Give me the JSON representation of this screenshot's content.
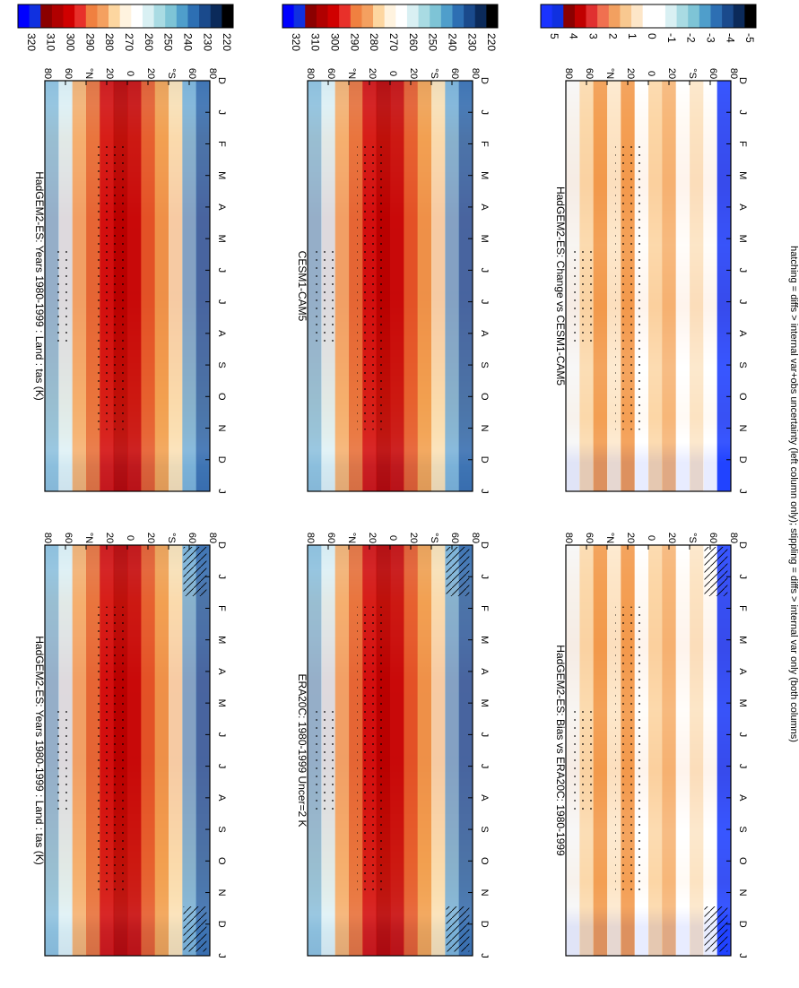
{
  "footer_note": "hatching = diffs > internal var+obs uncertainty (left column only); stippling = diffs > internal var only (both columns)",
  "abs_colorbar": {
    "labels": [
      "320",
      "310",
      "300",
      "290",
      "280",
      "270",
      "260",
      "250",
      "240",
      "230",
      "220"
    ]
  },
  "diff_colorbar": {
    "labels": [
      "5",
      "4",
      "3",
      "2",
      "1",
      "0",
      "-1",
      "-2",
      "-3",
      "-4",
      "-5"
    ]
  },
  "chart_data": [
    {
      "type": "heatmap",
      "title": "HadGEM2-ES: Years 1980-1999 : Land : tas (K)",
      "x": [
        "D",
        "J",
        "F",
        "M",
        "A",
        "M",
        "J",
        "J",
        "A",
        "S",
        "O",
        "N",
        "D",
        "J"
      ],
      "y_ticks": [
        "80",
        "60",
        "°N",
        "20",
        "0",
        "20",
        "°S",
        "60",
        "80"
      ],
      "color_scale": "abs",
      "lat_range": [
        -90,
        90
      ],
      "overlays": [
        "stippling",
        "hatching"
      ]
    },
    {
      "type": "heatmap",
      "title": "HadGEM2-ES: Years 1980-1999 : Land : tas (K)",
      "x": [
        "D",
        "J",
        "F",
        "M",
        "A",
        "M",
        "J",
        "J",
        "A",
        "S",
        "O",
        "N",
        "D",
        "J"
      ],
      "y_ticks": [
        "80",
        "60",
        "°N",
        "20",
        "0",
        "20",
        "°S",
        "60",
        "80"
      ],
      "color_scale": "abs",
      "lat_range": [
        -90,
        90
      ],
      "overlays": [
        "stippling"
      ]
    },
    {
      "type": "heatmap",
      "title": "ERA20C: 1980-1999 Uncer=2 K",
      "x": [
        "D",
        "J",
        "F",
        "M",
        "A",
        "M",
        "J",
        "J",
        "A",
        "S",
        "O",
        "N",
        "D",
        "J"
      ],
      "y_ticks": [
        "80",
        "60",
        "°N",
        "20",
        "0",
        "20",
        "°S",
        "60",
        "80"
      ],
      "color_scale": "abs",
      "lat_range": [
        -90,
        90
      ],
      "overlays": [
        "stippling",
        "hatching"
      ]
    },
    {
      "type": "heatmap",
      "title": "CESM1-CAM5",
      "x": [
        "D",
        "J",
        "F",
        "M",
        "A",
        "M",
        "J",
        "J",
        "A",
        "S",
        "O",
        "N",
        "D",
        "J"
      ],
      "y_ticks": [
        "80",
        "60",
        "°N",
        "20",
        "0",
        "20",
        "°S",
        "60",
        "80"
      ],
      "color_scale": "abs",
      "lat_range": [
        -90,
        90
      ],
      "overlays": [
        "stippling"
      ]
    },
    {
      "type": "heatmap",
      "title": "HadGEM2-ES: Bias vs ERA20C: 1980-1999",
      "x": [
        "D",
        "J",
        "F",
        "M",
        "A",
        "M",
        "J",
        "J",
        "A",
        "S",
        "O",
        "N",
        "D",
        "J"
      ],
      "y_ticks": [
        "80",
        "60",
        "°N",
        "20",
        "0",
        "20",
        "°S",
        "60",
        "80"
      ],
      "color_scale": "diff",
      "lat_range": [
        -90,
        90
      ],
      "overlays": [
        "stippling",
        "hatching"
      ]
    },
    {
      "type": "heatmap",
      "title": "HadGEM2-ES: Change vs CESM1-CAM5",
      "x": [
        "D",
        "J",
        "F",
        "M",
        "A",
        "M",
        "J",
        "J",
        "A",
        "S",
        "O",
        "N",
        "D",
        "J"
      ],
      "y_ticks": [
        "80",
        "60",
        "°N",
        "20",
        "0",
        "20",
        "°S",
        "60",
        "80"
      ],
      "color_scale": "diff",
      "lat_range": [
        -90,
        90
      ],
      "overlays": [
        "stippling"
      ]
    }
  ]
}
